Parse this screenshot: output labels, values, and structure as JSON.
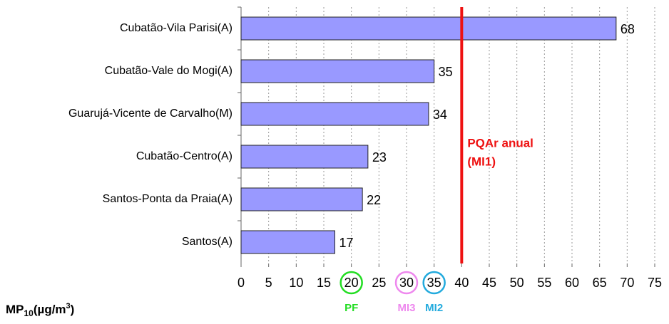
{
  "chart_data": {
    "type": "barh",
    "categories": [
      "Cubatão-Vila Parisi(A)",
      "Cubatão-Vale do Mogi(A)",
      "Guarujá-Vicente de Carvalho(M)",
      "Cubatão-Centro(A)",
      "Santos-Ponta da Praia(A)",
      "Santos(A)"
    ],
    "values": [
      68,
      35,
      34,
      23,
      22,
      17
    ],
    "color": "#9999ff",
    "xlim": [
      0,
      75
    ],
    "xticks": [
      0,
      5,
      10,
      15,
      20,
      25,
      30,
      35,
      40,
      45,
      50,
      55,
      60,
      65,
      70,
      75
    ],
    "grid": true,
    "x_label": {
      "main": "MP",
      "sub": "10",
      "rest": "(µg/m",
      "sup": "3",
      "end": ")"
    },
    "reference_line": {
      "value": 40,
      "color": "#ee1111",
      "label": [
        "PQAr anual",
        "(MI1)"
      ]
    },
    "highlighted_ticks": [
      {
        "value": 20,
        "label": "PF",
        "color": "#22dd22"
      },
      {
        "value": 30,
        "label": "MI3",
        "color": "#ee88ee"
      },
      {
        "value": 35,
        "label": "MI2",
        "color": "#22aadd"
      }
    ]
  }
}
